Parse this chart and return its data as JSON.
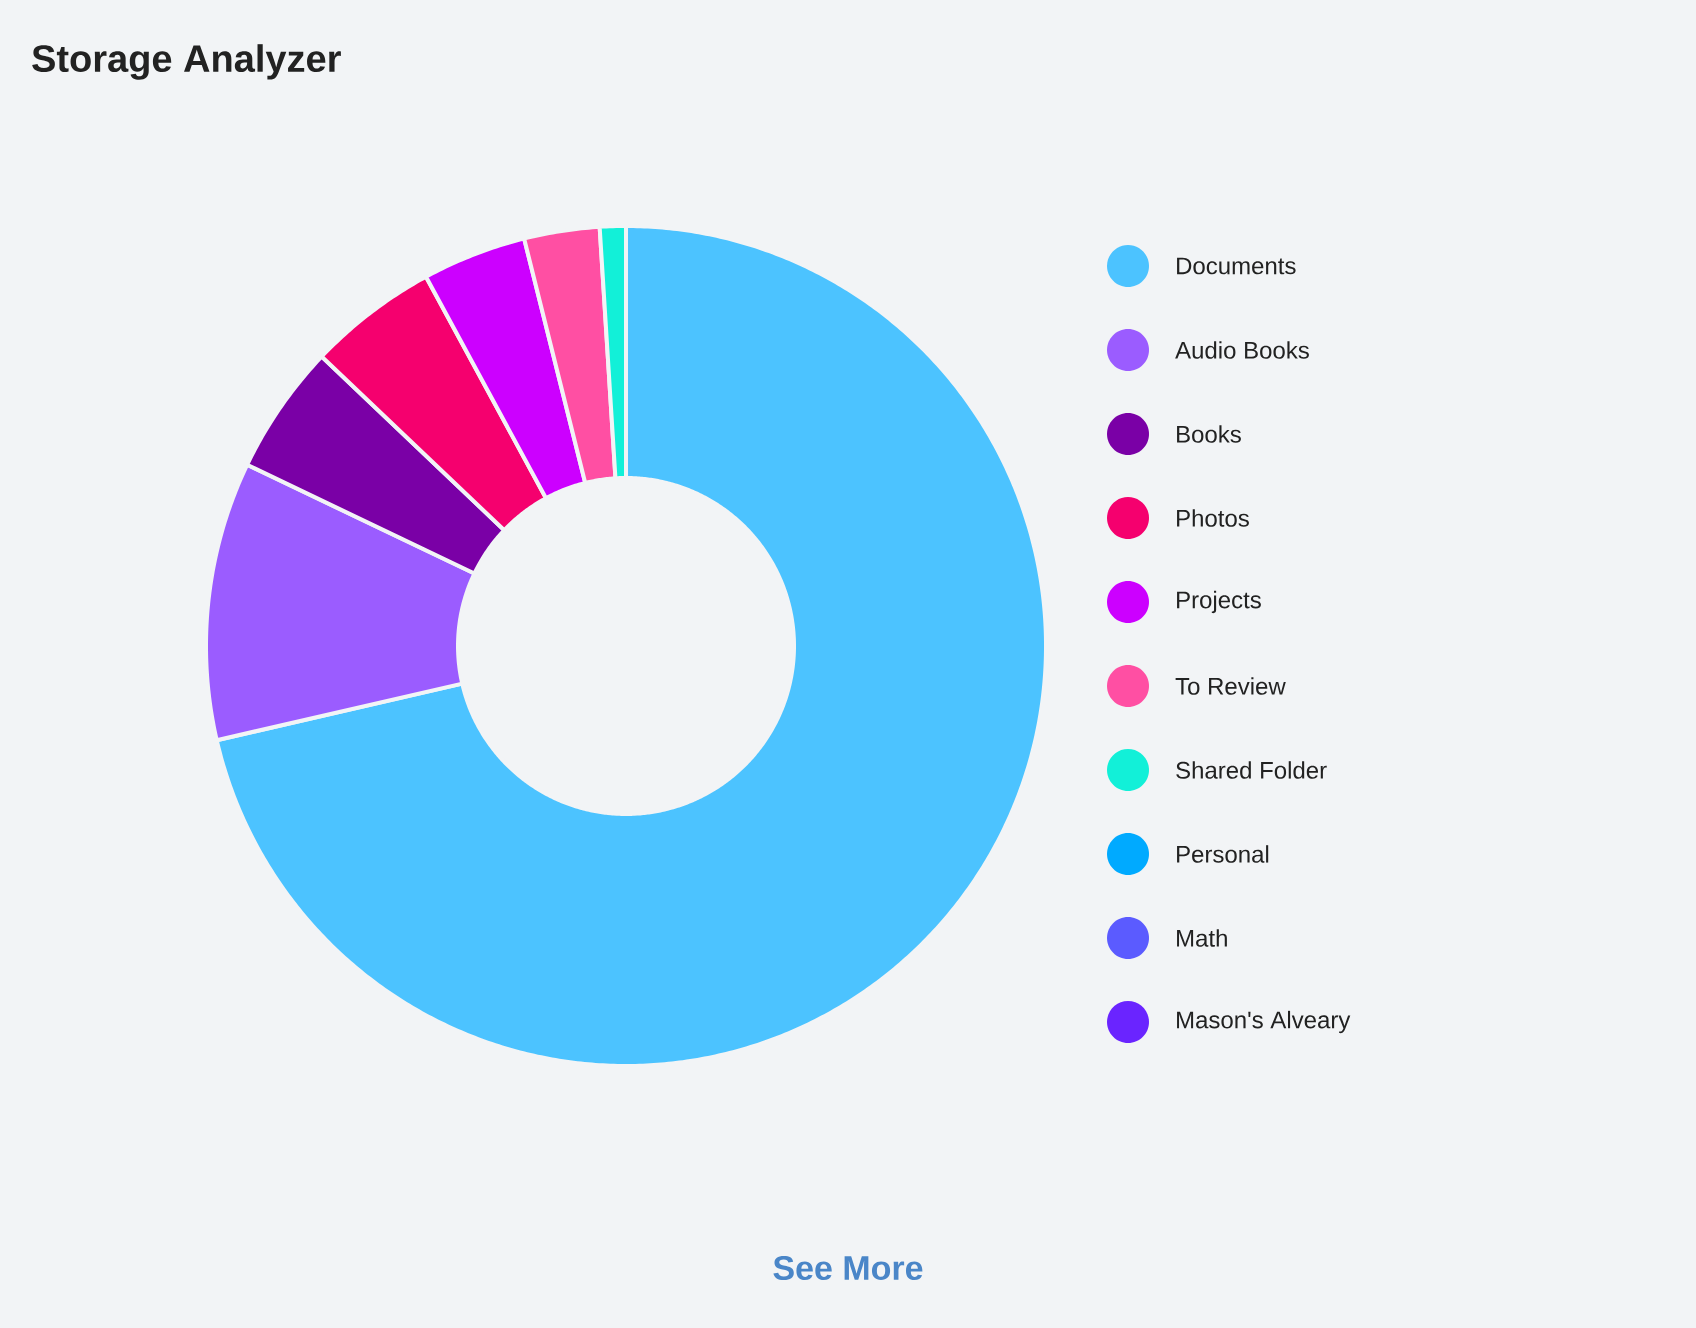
{
  "chart_data": {
    "type": "donut",
    "title": "Storage Analyzer",
    "categories": [
      "Documents",
      "Audio Books",
      "Books",
      "Photos",
      "Projects",
      "To Review",
      "Shared Folder",
      "Personal",
      "Math",
      "Mason's Alveary"
    ],
    "values": [
      71.4,
      10.7,
      5,
      5,
      4,
      2.9,
      1,
      0,
      0,
      0
    ],
    "colors": [
      "#4cc3ff",
      "#9b5cff",
      "#7a00a6",
      "#f5006e",
      "#cc00ff",
      "#ff4fa3",
      "#12f0d8",
      "#00aaff",
      "#5b5bff",
      "#6a24ff"
    ],
    "legend": "right",
    "annotations": [
      "See More"
    ]
  }
}
